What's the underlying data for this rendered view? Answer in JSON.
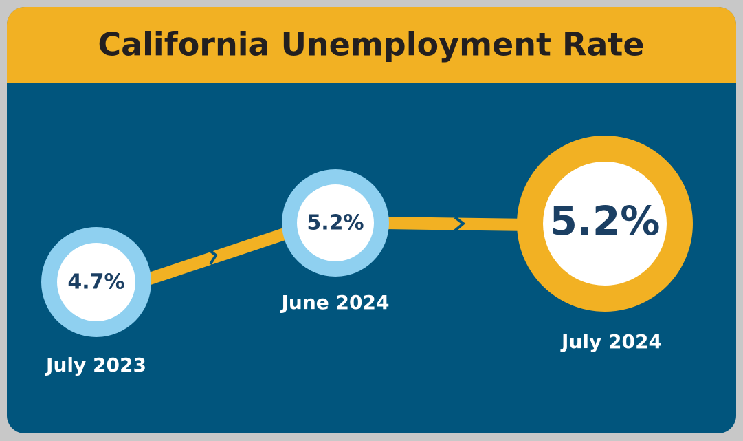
{
  "header": {
    "title": "California Unemployment Rate"
  },
  "nodes": [
    {
      "value": "4.7%",
      "label": "July 2023"
    },
    {
      "value": "5.2%",
      "label": "June 2024"
    },
    {
      "value": "5.2%",
      "label": "July 2024"
    }
  ]
}
